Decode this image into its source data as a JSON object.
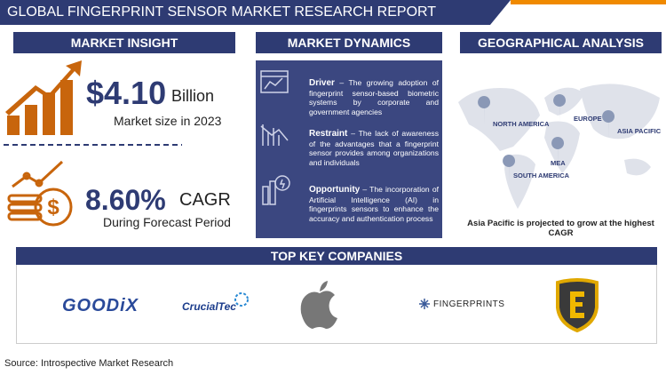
{
  "header": {
    "title": "GLOBAL FINGERPRINT SENSOR MARKET RESEARCH REPORT"
  },
  "market_insight": {
    "heading": "MARKET INSIGHT",
    "market_size": "$4.10",
    "unit": "Billion",
    "size_caption": "Market size in 2023",
    "cagr": "8.60%",
    "cagr_label": "CAGR",
    "cagr_caption": "During Forecast Period"
  },
  "market_dynamics": {
    "heading": "MARKET DYNAMICS",
    "items": [
      {
        "label": "Driver",
        "text": " – The growing adoption of fingerprint sensor-based biometric systems by corporate and government agencies"
      },
      {
        "label": "Restraint",
        "text": " – The lack of awareness of the advantages that a fingerprint sensor provides among organizations and individuals"
      },
      {
        "label": "Opportunity",
        "text": " – The incorporation of Artificial Intelligence (AI) in fingerprints sensors to enhance the accuracy and authentication process"
      }
    ]
  },
  "geographical_analysis": {
    "heading": "GEOGRAPHICAL ANALYSIS",
    "regions": [
      "NORTH AMERICA",
      "EUROPE",
      "ASIA PACIFIC",
      "MEA",
      "SOUTH AMERICA"
    ],
    "caption": "Asia Pacific is projected to grow at the highest CAGR"
  },
  "key_companies": {
    "heading": "TOP KEY COMPANIES",
    "logos": [
      "GOODiX",
      "CrucialTec",
      "FINGERPRINTS"
    ]
  },
  "source": "Source: Introspective Market Research"
}
